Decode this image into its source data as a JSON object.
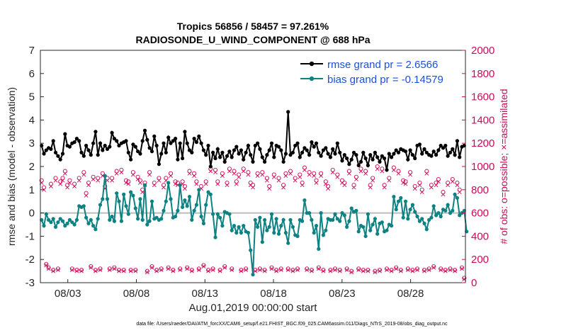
{
  "chart_data": {
    "type": "line",
    "title": "Tropics 56856 / 58457 = 97.261%",
    "subtitle": "RADIOSONDE_U_WIND_COMPONENT @ 688 hPa",
    "xlabel": "Aug.01,2019 00:00:00 start",
    "ylabel_left": "rmse and bias (model - observation)",
    "ylabel_right": "# of obs: o=possible; ×=assimilated",
    "footer": "data file: /Users/raeder/DAI/ATM_forcXX/CAM6_setup/f.e21.FHIST_BGC.f09_025.CAM6assim.011/Diags_NTrS_2019-08/obs_diag_output.nc",
    "x_start_day": 1,
    "x_end_day": 32,
    "xtick_days": [
      3,
      8,
      13,
      18,
      23,
      28
    ],
    "xtick_labels": [
      "08/03",
      "08/08",
      "08/13",
      "08/18",
      "08/23",
      "08/28"
    ],
    "ylim_left": [
      -3,
      7
    ],
    "ytick_left": [
      "-3",
      "-2",
      "-1",
      "0",
      "1",
      "2",
      "3",
      "4",
      "5",
      "6",
      "7"
    ],
    "ylim_right": [
      0,
      2000
    ],
    "ytick_right": [
      "0",
      "200",
      "400",
      "600",
      "800",
      "1000",
      "1200",
      "1400",
      "1600",
      "1800",
      "2000"
    ],
    "legend": [
      "rmse grand pr = 2.6566",
      "bias grand pr = -0.14579"
    ],
    "colors": {
      "rmse": "#000000",
      "bias": "#0e8282",
      "obs": "#cc0a58",
      "legend_text": "#1a4fe0",
      "zero_line": "#bbbbbb"
    },
    "series": [
      {
        "name": "rmse",
        "values": [
          2.9,
          2.55,
          2.7,
          2.8,
          2.75,
          3.1,
          2.6,
          2.45,
          2.3,
          2.55,
          3.4,
          2.9,
          2.85,
          3.0,
          3.05,
          3.2,
          3.1,
          2.6,
          2.45,
          2.9,
          2.7,
          2.5,
          3.0,
          3.5,
          2.5,
          3.0,
          2.7,
          2.9,
          2.75,
          2.85,
          3.45,
          3.2,
          3.1,
          2.9,
          3.0,
          3.05,
          3.1,
          2.6,
          2.3,
          2.95,
          2.85,
          2.65,
          2.55,
          3.1,
          3.55,
          3.15,
          2.8,
          2.65,
          3.3,
          2.9,
          2.1,
          2.55,
          3.0,
          2.6,
          3.25,
          3.0,
          3.1,
          3.2,
          2.3,
          3.0,
          2.35,
          3.5,
          3.0,
          2.7,
          2.6,
          3.2,
          3.05,
          3.3,
          3.0,
          2.7,
          2.5,
          2.9,
          2.0,
          2.6,
          2.35,
          2.75,
          2.4,
          2.6,
          2.2,
          2.45,
          2.65,
          2.4,
          2.7,
          2.85,
          2.55,
          2.7,
          2.3,
          2.6,
          2.9,
          2.5,
          2.2,
          2.9,
          3.0,
          2.75,
          2.4,
          2.2,
          2.5,
          2.7,
          3.0,
          2.4,
          2.9,
          2.85,
          2.7,
          2.2,
          2.55,
          4.35,
          2.5,
          2.6,
          2.9,
          3.0,
          2.4,
          2.6,
          2.8,
          2.7,
          2.5,
          3.05,
          2.85,
          3.0,
          2.6,
          2.45,
          2.7,
          2.8,
          2.55,
          2.4,
          2.75,
          2.55,
          3.0,
          2.6,
          2.25,
          2.5,
          2.35,
          2.1,
          2.3,
          2.6,
          2.5,
          2.05,
          2.2,
          2.6,
          2.35,
          2.05,
          2.5,
          2.3,
          2.6,
          2.4,
          2.2,
          2.45,
          2.35,
          1.85,
          2.55,
          2.4,
          2.55,
          2.7,
          2.6,
          2.75,
          2.7,
          2.65,
          2.3,
          2.7,
          2.5,
          2.35,
          2.9,
          2.95,
          2.55,
          2.75,
          2.6,
          2.5,
          2.45,
          2.65,
          2.5,
          2.7,
          2.9,
          2.8,
          2.9,
          2.45,
          2.6,
          2.75,
          2.5,
          3.1,
          2.4,
          2.85,
          2.9
        ]
      },
      {
        "name": "bias",
        "values": [
          -0.3,
          -0.55,
          -0.05,
          -0.3,
          -0.4,
          -0.25,
          -0.6,
          -0.4,
          -0.25,
          -0.35,
          -0.55,
          -0.45,
          -0.3,
          -0.4,
          -0.5,
          -0.3,
          0.3,
          0.25,
          0.3,
          -0.2,
          -0.45,
          -0.3,
          -0.55,
          -0.7,
          -0.25,
          0.35,
          0.6,
          1.6,
          0.6,
          -0.3,
          -0.15,
          -0.35,
          0.85,
          0.5,
          -0.35,
          0.8,
          0.3,
          -0.05,
          0.9,
          0.75,
          0.2,
          -0.25,
          0.6,
          -0.3,
          1.2,
          -0.5,
          -0.35,
          0.5,
          -0.25,
          -0.2,
          -0.3,
          -0.25,
          0.1,
          0.5,
          1.3,
          0.6,
          -0.2,
          -0.15,
          0.1,
          1.2,
          0.25,
          0.55,
          0.3,
          0.7,
          -0.3,
          0.1,
          0.35,
          1.0,
          -0.15,
          -0.45,
          0.35,
          0.9,
          0.8,
          -0.05,
          -1.05,
          -0.05,
          -0.2,
          -0.55,
          0.05,
          0.0,
          -0.05,
          -0.75,
          -0.55,
          -0.85,
          -0.6,
          -0.85,
          -0.55,
          -0.8,
          -0.85,
          -1.6,
          -2.65,
          -0.3,
          -0.6,
          -0.2,
          -1.25,
          -0.3,
          -0.75,
          -0.6,
          -0.05,
          -0.85,
          -0.25,
          -0.9,
          -0.55,
          -0.3,
          -0.85,
          -1.3,
          -0.3,
          -0.6,
          -0.95,
          -1.0,
          -0.3,
          -0.35,
          0.55,
          0.0,
          0.0,
          -0.3,
          -0.85,
          -0.55,
          -1.55,
          0.0,
          -0.95,
          -0.75,
          -0.25,
          -0.3,
          -0.3,
          -0.05,
          -0.25,
          -0.35,
          0.0,
          -0.1,
          -0.6,
          -0.35,
          0.2,
          0.05,
          0.1,
          -0.8,
          -0.55,
          -0.6,
          -1.0,
          -0.05,
          -0.75,
          -0.5,
          -0.25,
          -0.9,
          -0.45,
          -0.4,
          -0.8,
          -0.75,
          -0.5,
          -0.55,
          0.7,
          0.15,
          0.5,
          0.65,
          -0.2,
          0.5,
          -0.25,
          0.15,
          0.35,
          0.05,
          -0.15,
          -0.35,
          -0.25,
          -0.45,
          -0.7,
          -0.3,
          -0.2,
          0.3,
          -0.1,
          0.0,
          -0.15,
          0.15,
          0.1,
          0.35,
          0.0,
          0.1,
          0.8,
          0.65,
          -0.1,
          0.0,
          0.1,
          -0.8
        ]
      },
      {
        "name": "possible",
        "values": [
          880,
          820,
          160,
          130,
          850,
          110,
          900,
          120,
          870,
          900,
          960,
          840,
          880,
          120,
          850,
          110,
          900,
          110,
          950,
          770,
          860,
          140,
          910,
          110,
          900,
          120,
          940,
          830,
          900,
          120,
          900,
          130,
          960,
          110,
          970,
          110,
          880,
          870,
          110,
          950,
          110,
          910,
          880,
          800,
          860,
          100,
          950,
          140,
          860,
          110,
          900,
          120,
          840,
          900,
          130,
          940,
          110,
          870,
          860,
          120,
          870,
          830,
          130,
          960,
          110,
          940,
          870,
          120,
          830,
          150,
          870,
          110,
          980,
          120,
          970,
          870,
          110,
          940,
          140,
          860,
          980,
          120,
          960,
          870,
          930,
          110,
          980,
          120,
          950,
          860,
          840,
          110,
          940,
          120,
          950,
          110,
          900,
          830,
          130,
          930,
          110,
          900,
          120,
          840,
          940,
          120,
          960,
          110,
          900,
          120,
          930,
          860,
          990,
          120,
          950,
          110,
          940,
          880,
          130,
          940,
          110,
          870,
          830,
          110,
          970,
          120,
          930,
          110,
          880,
          860,
          120,
          960,
          100,
          840,
          910,
          120,
          980,
          110,
          960,
          110,
          840,
          900,
          100,
          1000,
          110,
          980,
          840,
          120,
          900,
          110,
          990,
          130,
          960,
          110,
          880,
          870,
          120,
          950,
          110,
          830,
          120,
          860,
          800,
          110,
          960,
          120,
          840,
          140,
          860,
          890,
          120,
          780,
          110,
          860,
          120,
          890,
          110,
          860,
          800,
          130,
          40
        ]
      },
      {
        "name": "assimilated",
        "values": [
          860,
          800,
          150,
          120,
          830,
          100,
          880,
          110,
          850,
          880,
          940,
          820,
          860,
          110,
          830,
          100,
          880,
          100,
          930,
          750,
          840,
          130,
          890,
          100,
          880,
          110,
          920,
          810,
          880,
          110,
          880,
          120,
          940,
          100,
          950,
          100,
          860,
          850,
          100,
          930,
          100,
          890,
          860,
          780,
          840,
          90,
          930,
          130,
          840,
          100,
          880,
          110,
          820,
          880,
          120,
          920,
          100,
          850,
          840,
          110,
          850,
          810,
          120,
          940,
          100,
          920,
          850,
          110,
          810,
          140,
          850,
          100,
          960,
          110,
          950,
          850,
          100,
          920,
          130,
          840,
          960,
          110,
          940,
          850,
          910,
          100,
          960,
          110,
          930,
          840,
          820,
          100,
          920,
          110,
          930,
          100,
          880,
          810,
          120,
          910,
          100,
          880,
          110,
          820,
          920,
          110,
          940,
          100,
          880,
          110,
          910,
          840,
          970,
          110,
          930,
          100,
          920,
          860,
          120,
          920,
          100,
          850,
          810,
          100,
          950,
          110,
          910,
          100,
          860,
          840,
          110,
          940,
          90,
          820,
          890,
          110,
          960,
          100,
          940,
          100,
          820,
          880,
          90,
          980,
          100,
          960,
          820,
          110,
          880,
          100,
          970,
          120,
          940,
          100,
          860,
          850,
          110,
          930,
          100,
          810,
          110,
          840,
          780,
          100,
          940,
          110,
          820,
          130,
          840,
          870,
          110,
          760,
          100,
          840,
          110,
          870,
          100,
          840,
          780,
          120,
          30
        ]
      }
    ]
  }
}
